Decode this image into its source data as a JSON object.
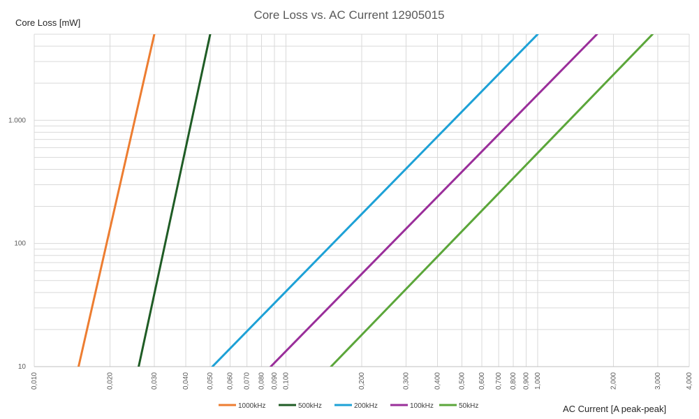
{
  "chart_data": {
    "type": "line",
    "title": "Core Loss vs. AC Current 12905015",
    "xlabel": "AC Current [A peak-peak]",
    "ylabel": "Core Loss [mW]",
    "x_scale": "log",
    "y_scale": "log",
    "xlim": [
      0.01,
      4.0
    ],
    "ylim": [
      10,
      5000
    ],
    "x_tick_labels": [
      {
        "value": 0.01,
        "label": "0,010"
      },
      {
        "value": 0.02,
        "label": "0,020"
      },
      {
        "value": 0.03,
        "label": "0,030"
      },
      {
        "value": 0.04,
        "label": "0,040"
      },
      {
        "value": 0.05,
        "label": "0,050"
      },
      {
        "value": 0.06,
        "label": "0,060"
      },
      {
        "value": 0.07,
        "label": "0,070"
      },
      {
        "value": 0.08,
        "label": "0,080"
      },
      {
        "value": 0.09,
        "label": "0,090"
      },
      {
        "value": 0.1,
        "label": "0,100"
      },
      {
        "value": 0.2,
        "label": "0,200"
      },
      {
        "value": 0.3,
        "label": "0,300"
      },
      {
        "value": 0.4,
        "label": "0,400"
      },
      {
        "value": 0.5,
        "label": "0,500"
      },
      {
        "value": 0.6,
        "label": "0,600"
      },
      {
        "value": 0.7,
        "label": "0,700"
      },
      {
        "value": 0.8,
        "label": "0,800"
      },
      {
        "value": 0.9,
        "label": "0,900"
      },
      {
        "value": 1.0,
        "label": "1,000"
      },
      {
        "value": 2.0,
        "label": "2,000"
      },
      {
        "value": 3.0,
        "label": "3,000"
      },
      {
        "value": 4.0,
        "label": "4,000"
      }
    ],
    "y_tick_labels": [
      {
        "value": 10,
        "label": "10"
      },
      {
        "value": 100,
        "label": "100"
      },
      {
        "value": 1000,
        "label": "1.000"
      }
    ],
    "grid": true,
    "legend_position": "bottom",
    "series": [
      {
        "name": "1000kHz",
        "color": "#ED7D31",
        "x": [
          0.015,
          0.03
        ],
        "y": [
          10,
          5000
        ]
      },
      {
        "name": "500kHz",
        "color": "#1F5C25",
        "x": [
          0.026,
          0.05
        ],
        "y": [
          10,
          5000
        ]
      },
      {
        "name": "200kHz",
        "color": "#1DA1D6",
        "x": [
          0.051,
          1.0
        ],
        "y": [
          10,
          5000
        ]
      },
      {
        "name": "100kHz",
        "color": "#9A2E9A",
        "x": [
          0.087,
          1.72
        ],
        "y": [
          10,
          5000
        ]
      },
      {
        "name": "50kHz",
        "color": "#5BA63A",
        "x": [
          0.151,
          2.86
        ],
        "y": [
          10,
          5000
        ]
      }
    ]
  }
}
